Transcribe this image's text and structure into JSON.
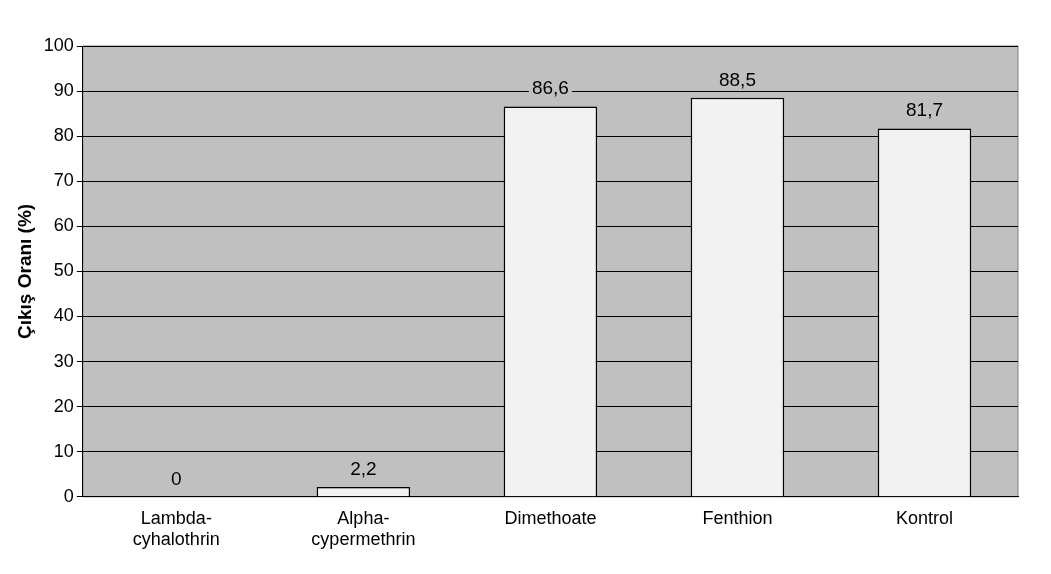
{
  "chart_data": {
    "type": "bar",
    "ylabel": "Çıkış Oranı (%)",
    "categories": [
      "Lambda-cyhalothrin",
      "Alpha-cypermethrin",
      "Dimethoate",
      "Fenthion",
      "Kontrol"
    ],
    "values": [
      0,
      2.2,
      86.6,
      88.5,
      81.7
    ],
    "value_labels": [
      "0",
      "2,2",
      "86,6",
      "88,5",
      "81,7"
    ],
    "color": "#f2f2f2",
    "ylim": [
      0,
      100
    ],
    "yticks": [
      0,
      10,
      20,
      30,
      40,
      50,
      60,
      70,
      80,
      90,
      100
    ],
    "grid": "y",
    "legend": false
  }
}
